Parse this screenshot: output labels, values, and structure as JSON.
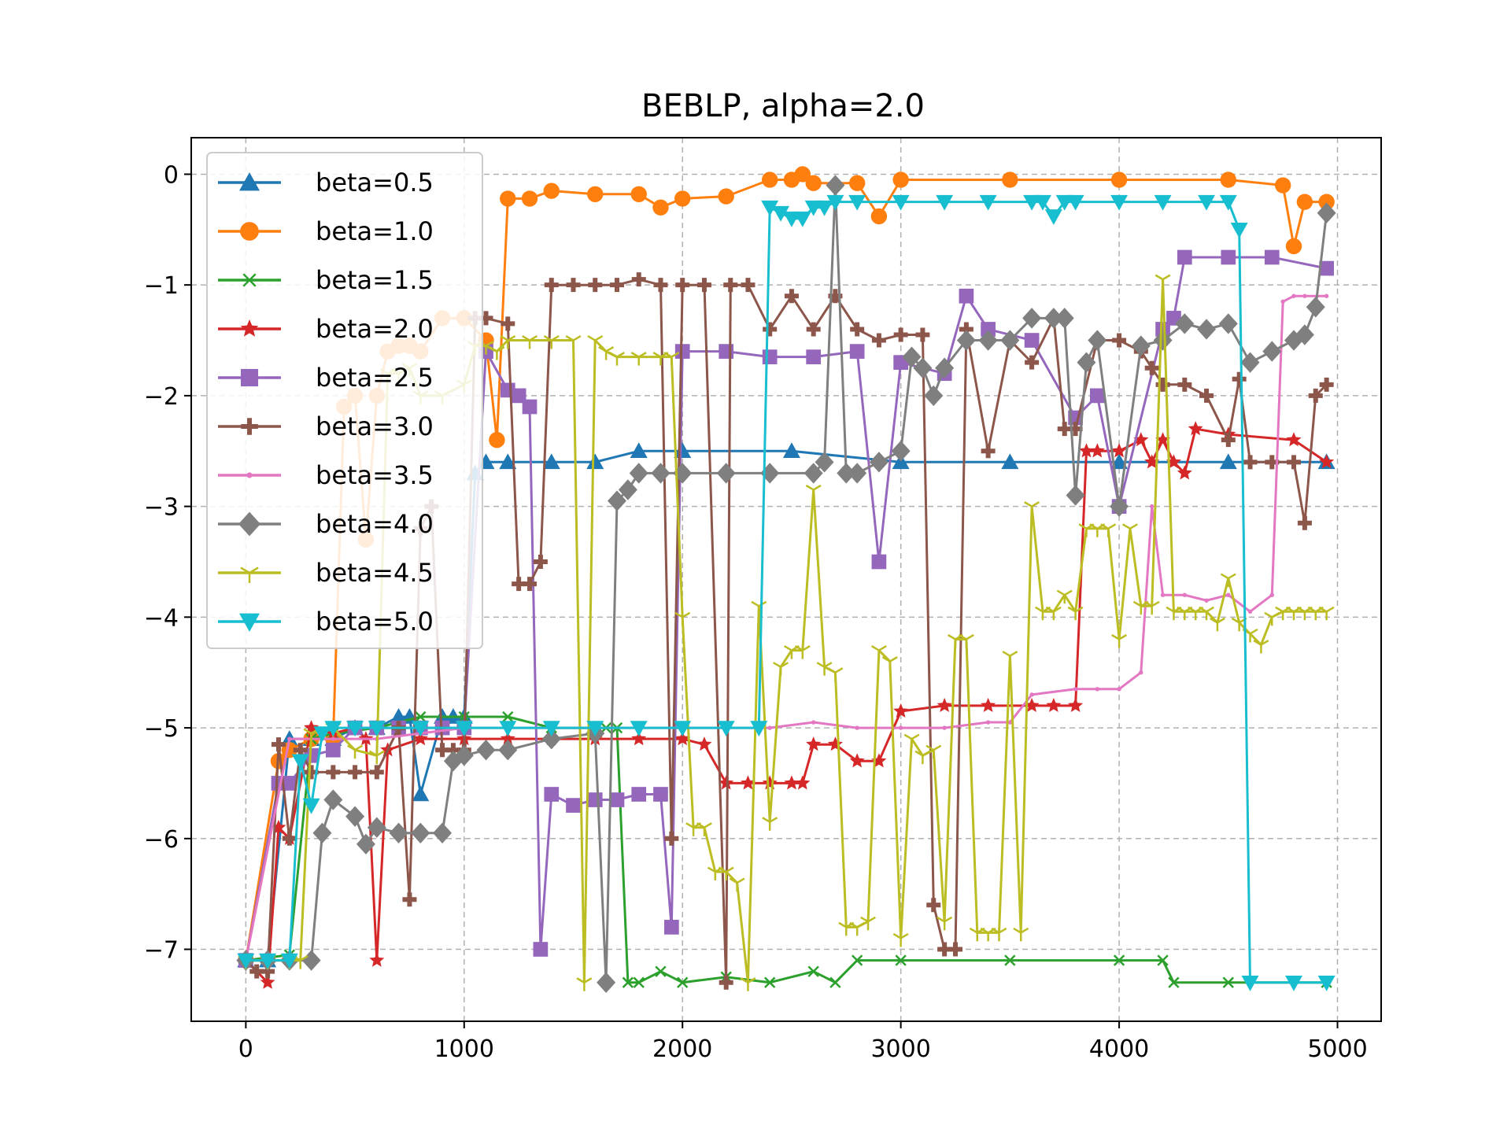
{
  "chart_data": {
    "type": "line",
    "title": "BEBLP, alpha=2.0",
    "xlabel": "",
    "ylabel": "",
    "xlim": [
      -250,
      5200
    ],
    "ylim": [
      -7.65,
      0.33
    ],
    "xticks": [
      0,
      1000,
      2000,
      3000,
      4000,
      5000
    ],
    "xtick_labels": [
      "0",
      "1000",
      "2000",
      "3000",
      "4000",
      "5000"
    ],
    "yticks": [
      0,
      -1,
      -2,
      -3,
      -4,
      -5,
      -6,
      -7
    ],
    "ytick_labels": [
      "0",
      "−1",
      "−2",
      "−3",
      "−4",
      "−5",
      "−6",
      "−7"
    ],
    "grid": true,
    "legend_position": "upper-left",
    "series": [
      {
        "name": "beta=0.5",
        "color": "#1f77b4",
        "marker": "triangle-up",
        "x": [
          0,
          100,
          200,
          300,
          400,
          500,
          600,
          700,
          750,
          800,
          900,
          950,
          1000,
          1050,
          1100,
          1200,
          1400,
          1600,
          1800,
          2000,
          2500,
          3000,
          3500,
          4000,
          4500,
          4950
        ],
        "y": [
          -7.1,
          -7.1,
          -5.1,
          -5.1,
          -5.1,
          -5.0,
          -5.0,
          -4.9,
          -4.9,
          -5.6,
          -4.9,
          -4.9,
          -4.9,
          -2.7,
          -2.6,
          -2.6,
          -2.6,
          -2.6,
          -2.5,
          -2.5,
          -2.5,
          -2.6,
          -2.6,
          -2.6,
          -2.6,
          -2.6
        ]
      },
      {
        "name": "beta=1.0",
        "color": "#ff7f0e",
        "marker": "circle",
        "x": [
          0,
          150,
          200,
          300,
          400,
          450,
          500,
          550,
          600,
          650,
          700,
          750,
          800,
          900,
          1000,
          1100,
          1150,
          1200,
          1300,
          1400,
          1600,
          1800,
          1900,
          2000,
          2200,
          2400,
          2500,
          2550,
          2600,
          2800,
          2900,
          3000,
          3500,
          4000,
          4500,
          4750,
          4800,
          4850,
          4950
        ],
        "y": [
          -7.1,
          -5.3,
          -5.2,
          -5.1,
          -5.1,
          -2.1,
          -2.0,
          -3.3,
          -2.0,
          -1.6,
          -1.55,
          -1.55,
          -1.6,
          -1.3,
          -1.3,
          -1.5,
          -2.4,
          -0.22,
          -0.22,
          -0.15,
          -0.18,
          -0.18,
          -0.3,
          -0.22,
          -0.2,
          -0.05,
          -0.05,
          0.0,
          -0.08,
          -0.08,
          -0.38,
          -0.05,
          -0.05,
          -0.05,
          -0.05,
          -0.1,
          -0.65,
          -0.25,
          -0.25
        ]
      },
      {
        "name": "beta=1.5",
        "color": "#2ca02c",
        "marker": "x",
        "x": [
          0,
          200,
          300,
          400,
          600,
          800,
          1000,
          1200,
          1400,
          1600,
          1650,
          1700,
          1750,
          1800,
          1900,
          2000,
          2200,
          2400,
          2600,
          2700,
          2800,
          3000,
          3500,
          4000,
          4200,
          4250,
          4500,
          4950
        ],
        "y": [
          -7.1,
          -7.05,
          -5.1,
          -5.05,
          -5.0,
          -4.9,
          -4.9,
          -4.9,
          -5.0,
          -5.0,
          -5.0,
          -5.0,
          -7.3,
          -7.3,
          -7.2,
          -7.3,
          -7.25,
          -7.3,
          -7.2,
          -7.3,
          -7.1,
          -7.1,
          -7.1,
          -7.1,
          -7.1,
          -7.3,
          -7.3,
          -7.3
        ]
      },
      {
        "name": "beta=2.0",
        "color": "#d62728",
        "marker": "star",
        "x": [
          0,
          100,
          150,
          200,
          300,
          400,
          500,
          550,
          600,
          650,
          800,
          1000,
          1200,
          1400,
          1600,
          1800,
          2000,
          2100,
          2200,
          2300,
          2400,
          2500,
          2550,
          2600,
          2700,
          2800,
          2900,
          3000,
          3200,
          3400,
          3600,
          3700,
          3800,
          3850,
          3900,
          4000,
          4100,
          4150,
          4200,
          4250,
          4300,
          4350,
          4500,
          4800,
          4950
        ],
        "y": [
          -7.1,
          -7.3,
          -5.9,
          -6.0,
          -5.0,
          -5.05,
          -5.0,
          -5.1,
          -7.1,
          -5.2,
          -5.1,
          -5.1,
          -5.1,
          -5.1,
          -5.1,
          -5.1,
          -5.1,
          -5.15,
          -5.5,
          -5.5,
          -5.5,
          -5.5,
          -5.5,
          -5.15,
          -5.15,
          -5.3,
          -5.3,
          -4.85,
          -4.8,
          -4.8,
          -4.8,
          -4.8,
          -4.8,
          -2.5,
          -2.5,
          -2.5,
          -2.4,
          -2.6,
          -2.4,
          -2.6,
          -2.7,
          -2.3,
          -2.35,
          -2.4,
          -2.6
        ]
      },
      {
        "name": "beta=2.5",
        "color": "#9467bd",
        "marker": "square",
        "x": [
          0,
          150,
          200,
          300,
          400,
          500,
          600,
          700,
          800,
          900,
          1000,
          1100,
          1200,
          1250,
          1300,
          1350,
          1400,
          1500,
          1600,
          1700,
          1800,
          1900,
          1950,
          2000,
          2200,
          2400,
          2600,
          2800,
          2900,
          3000,
          3200,
          3300,
          3400,
          3600,
          3800,
          3900,
          4000,
          4200,
          4250,
          4300,
          4500,
          4700,
          4950
        ],
        "y": [
          -7.1,
          -5.5,
          -5.5,
          -5.25,
          -5.2,
          -5.0,
          -5.0,
          -5.0,
          -5.0,
          -5.0,
          -5.0,
          -1.6,
          -1.95,
          -2.0,
          -2.1,
          -7.0,
          -5.6,
          -5.7,
          -5.65,
          -5.65,
          -5.6,
          -5.6,
          -6.8,
          -1.6,
          -1.6,
          -1.65,
          -1.65,
          -1.6,
          -3.5,
          -1.7,
          -1.8,
          -1.1,
          -1.4,
          -1.5,
          -2.2,
          -2.0,
          -3.0,
          -1.4,
          -1.3,
          -0.75,
          -0.75,
          -0.75,
          -0.85
        ]
      },
      {
        "name": "beta=3.0",
        "color": "#8c564b",
        "marker": "plus",
        "x": [
          0,
          50,
          100,
          150,
          200,
          250,
          300,
          400,
          500,
          600,
          700,
          750,
          800,
          850,
          900,
          950,
          1000,
          1050,
          1100,
          1200,
          1250,
          1300,
          1350,
          1400,
          1500,
          1600,
          1700,
          1800,
          1900,
          1950,
          2000,
          2100,
          2200,
          2220,
          2300,
          2400,
          2500,
          2600,
          2700,
          2800,
          2900,
          3000,
          3100,
          3150,
          3200,
          3250,
          3300,
          3400,
          3500,
          3600,
          3700,
          3750,
          3800,
          3900,
          4000,
          4100,
          4150,
          4200,
          4300,
          4400,
          4500,
          4550,
          4600,
          4700,
          4800,
          4850,
          4900,
          4950
        ],
        "y": [
          -7.1,
          -7.2,
          -7.2,
          -5.15,
          -6.0,
          -5.2,
          -5.4,
          -5.4,
          -5.4,
          -5.4,
          -5.0,
          -6.55,
          -3.2,
          -3.0,
          -5.2,
          -5.2,
          -5.2,
          -1.3,
          -1.3,
          -1.35,
          -3.7,
          -3.7,
          -3.5,
          -1.0,
          -1.0,
          -1.0,
          -1.0,
          -0.95,
          -1.0,
          -6.0,
          -1.0,
          -1.0,
          -7.3,
          -1.0,
          -1.0,
          -1.4,
          -1.1,
          -1.4,
          -1.1,
          -1.4,
          -1.5,
          -1.45,
          -1.45,
          -6.6,
          -7.0,
          -7.0,
          -1.4,
          -2.5,
          -1.5,
          -1.7,
          -1.3,
          -2.3,
          -2.3,
          -1.5,
          -1.5,
          -1.6,
          -1.75,
          -1.9,
          -1.9,
          -2.0,
          -2.4,
          -1.85,
          -2.6,
          -2.6,
          -2.6,
          -3.15,
          -2.0,
          -1.9
        ]
      },
      {
        "name": "beta=3.5",
        "color": "#e377c2",
        "marker": "dot",
        "x": [
          0,
          200,
          400,
          600,
          800,
          1000,
          1200,
          1400,
          1600,
          1800,
          2000,
          2200,
          2400,
          2600,
          2800,
          3000,
          3200,
          3400,
          3500,
          3600,
          3800,
          3900,
          4000,
          4100,
          4150,
          4200,
          4300,
          4400,
          4500,
          4600,
          4700,
          4750,
          4800,
          4850,
          4950
        ],
        "y": [
          -7.1,
          -5.1,
          -5.1,
          -5.1,
          -5.05,
          -5.0,
          -5.0,
          -5.0,
          -5.0,
          -5.0,
          -5.0,
          -5.0,
          -5.0,
          -4.95,
          -5.0,
          -5.0,
          -5.0,
          -4.95,
          -4.95,
          -4.7,
          -4.65,
          -4.65,
          -4.65,
          -4.5,
          -3.0,
          -3.8,
          -3.8,
          -3.85,
          -3.8,
          -3.95,
          -3.8,
          -1.15,
          -1.1,
          -1.1,
          -1.1
        ]
      },
      {
        "name": "beta=4.0",
        "color": "#7f7f7f",
        "marker": "diamond",
        "x": [
          0,
          100,
          200,
          300,
          350,
          400,
          500,
          550,
          600,
          700,
          800,
          900,
          950,
          1000,
          1100,
          1200,
          1400,
          1600,
          1650,
          1700,
          1750,
          1800,
          1900,
          2000,
          2200,
          2400,
          2600,
          2650,
          2700,
          2750,
          2800,
          2900,
          3000,
          3050,
          3100,
          3150,
          3200,
          3300,
          3400,
          3500,
          3600,
          3700,
          3750,
          3800,
          3850,
          3900,
          4000,
          4100,
          4200,
          4300,
          4400,
          4500,
          4600,
          4700,
          4800,
          4850,
          4900,
          4950
        ],
        "y": [
          -7.1,
          -7.1,
          -7.1,
          -7.1,
          -5.95,
          -5.65,
          -5.8,
          -6.05,
          -5.9,
          -5.95,
          -5.95,
          -5.95,
          -5.3,
          -5.25,
          -5.2,
          -5.2,
          -5.1,
          -5.05,
          -7.3,
          -2.95,
          -2.85,
          -2.7,
          -2.7,
          -2.7,
          -2.7,
          -2.7,
          -2.7,
          -2.6,
          -0.1,
          -2.7,
          -2.7,
          -2.6,
          -2.5,
          -1.65,
          -1.75,
          -2.0,
          -1.75,
          -1.5,
          -1.5,
          -1.5,
          -1.3,
          -1.3,
          -1.3,
          -2.9,
          -1.7,
          -1.5,
          -3.0,
          -1.55,
          -1.5,
          -1.35,
          -1.4,
          -1.35,
          -1.7,
          -1.6,
          -1.5,
          -1.45,
          -1.2,
          -0.35
        ]
      },
      {
        "name": "beta=4.5",
        "color": "#bcbd22",
        "marker": "tri-down",
        "x": [
          0,
          100,
          200,
          250,
          300,
          400,
          500,
          600,
          650,
          700,
          750,
          800,
          900,
          1000,
          1050,
          1100,
          1150,
          1200,
          1300,
          1400,
          1500,
          1550,
          1600,
          1650,
          1700,
          1800,
          1900,
          1950,
          2000,
          2050,
          2100,
          2150,
          2200,
          2250,
          2300,
          2350,
          2400,
          2450,
          2500,
          2550,
          2600,
          2650,
          2700,
          2750,
          2800,
          2850,
          2900,
          2950,
          3000,
          3050,
          3100,
          3150,
          3200,
          3250,
          3300,
          3350,
          3400,
          3450,
          3500,
          3550,
          3600,
          3650,
          3700,
          3750,
          3800,
          3850,
          3900,
          3950,
          4000,
          4050,
          4100,
          4150,
          4200,
          4250,
          4300,
          4350,
          4400,
          4450,
          4500,
          4550,
          4600,
          4650,
          4700,
          4750,
          4800,
          4850,
          4900,
          4950
        ],
        "y": [
          -7.1,
          -7.1,
          -7.1,
          -7.1,
          -5.05,
          -5.0,
          -5.2,
          -5.25,
          -1.8,
          -1.8,
          -1.75,
          -2.0,
          -2.0,
          -1.9,
          -1.55,
          -1.55,
          -1.6,
          -1.5,
          -1.5,
          -1.5,
          -1.5,
          -7.3,
          -1.5,
          -1.6,
          -1.65,
          -1.65,
          -1.65,
          -1.65,
          -4.0,
          -5.9,
          -5.9,
          -6.3,
          -6.3,
          -6.4,
          -7.3,
          -3.9,
          -5.85,
          -4.45,
          -4.3,
          -4.3,
          -2.85,
          -4.45,
          -4.5,
          -6.8,
          -6.8,
          -6.75,
          -4.3,
          -4.4,
          -6.9,
          -5.1,
          -5.25,
          -5.2,
          -6.75,
          -4.2,
          -4.2,
          -6.85,
          -6.85,
          -6.85,
          -4.35,
          -6.85,
          -3.0,
          -3.95,
          -3.95,
          -3.8,
          -3.95,
          -3.2,
          -3.2,
          -3.2,
          -4.2,
          -3.2,
          -3.9,
          -3.9,
          -0.95,
          -3.95,
          -3.95,
          -3.95,
          -3.95,
          -4.05,
          -3.65,
          -4.05,
          -4.15,
          -4.25,
          -4.0,
          -3.95,
          -3.95,
          -3.95,
          -3.95,
          -3.95
        ]
      },
      {
        "name": "beta=5.0",
        "color": "#17becf",
        "marker": "triangle-down",
        "x": [
          0,
          100,
          200,
          250,
          300,
          350,
          400,
          500,
          600,
          800,
          1000,
          1200,
          1400,
          1600,
          1800,
          2000,
          2200,
          2350,
          2400,
          2450,
          2500,
          2550,
          2600,
          2650,
          2700,
          2800,
          3000,
          3200,
          3400,
          3600,
          3650,
          3700,
          3750,
          3800,
          4000,
          4200,
          4400,
          4500,
          4550,
          4600,
          4800,
          4950
        ],
        "y": [
          -7.1,
          -7.1,
          -7.1,
          -5.3,
          -5.7,
          -5.05,
          -5.0,
          -5.0,
          -5.0,
          -5.0,
          -5.0,
          -5.0,
          -5.0,
          -5.0,
          -5.0,
          -5.0,
          -5.0,
          -5.0,
          -0.3,
          -0.35,
          -0.4,
          -0.4,
          -0.3,
          -0.3,
          -0.25,
          -0.25,
          -0.25,
          -0.25,
          -0.25,
          -0.25,
          -0.25,
          -0.38,
          -0.25,
          -0.25,
          -0.25,
          -0.25,
          -0.25,
          -0.25,
          -0.5,
          -7.3,
          -7.3,
          -7.3
        ]
      }
    ]
  }
}
